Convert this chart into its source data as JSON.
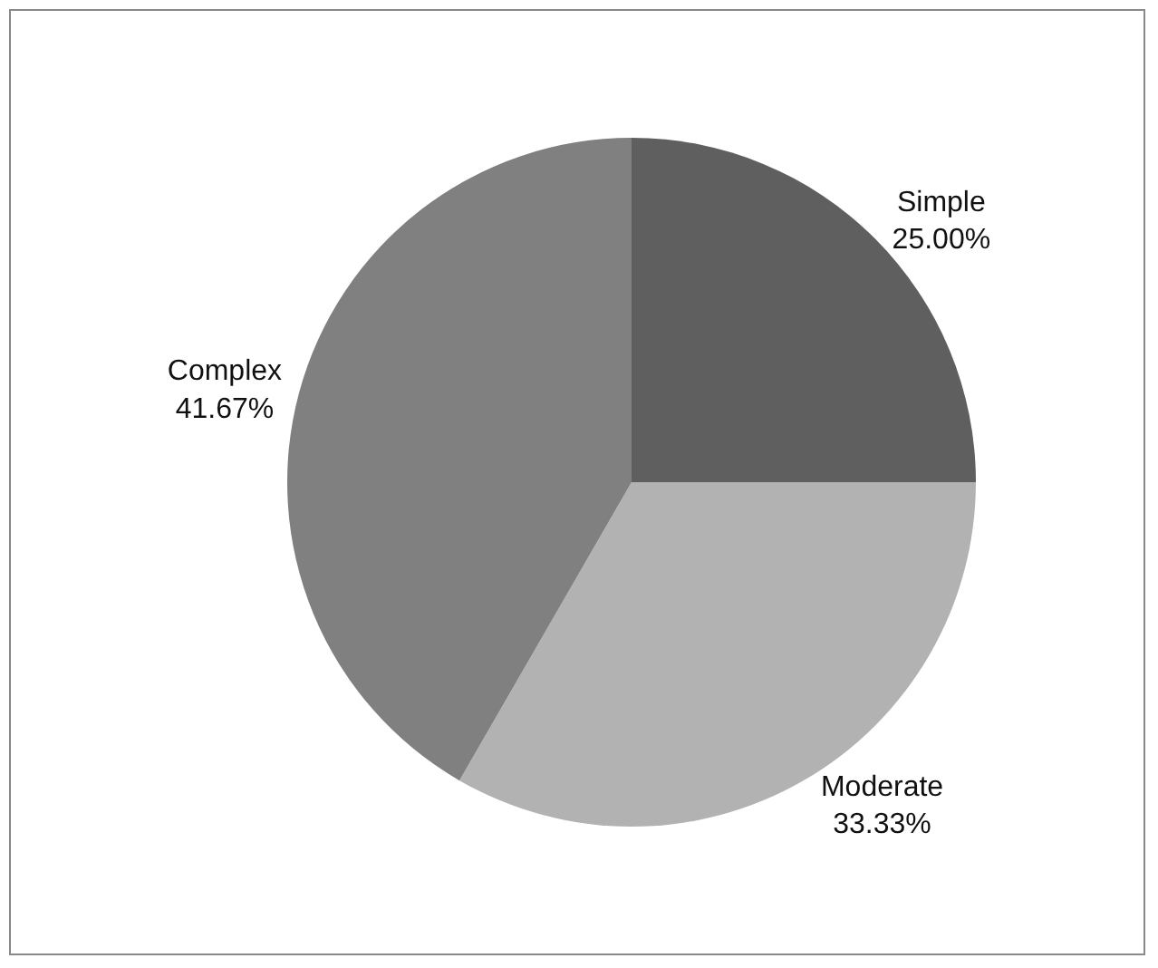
{
  "chart_data": {
    "type": "pie",
    "categories": [
      "Simple",
      "Moderate",
      "Complex"
    ],
    "values": [
      25,
      33.33,
      41.67
    ],
    "value_labels": [
      "25.00%",
      "33.33%",
      "41.67%"
    ],
    "colors": [
      "#5f5f5f",
      "#b2b2b2",
      "#808080"
    ],
    "legend": false
  }
}
